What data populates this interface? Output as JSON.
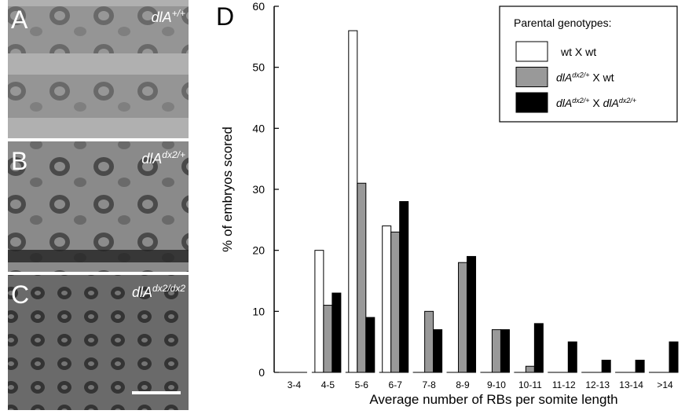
{
  "panels": [
    {
      "letter": "A",
      "genotype": [
        {
          "text": "dlA",
          "italic": true
        },
        {
          "text": "+/+",
          "italic": true,
          "sup": true
        }
      ]
    },
    {
      "letter": "B",
      "genotype": [
        {
          "text": "dlA",
          "italic": true
        },
        {
          "text": "dx2/+",
          "italic": true,
          "sup": true
        }
      ]
    },
    {
      "letter": "C",
      "genotype": [
        {
          "text": "dlA",
          "italic": true
        },
        {
          "text": "dx2/dx2",
          "italic": true,
          "sup": true
        }
      ]
    }
  ],
  "chart_data": {
    "type": "bar",
    "letter": "D",
    "x_label": "Average number of RBs per somite length",
    "y_label": "% of embryos scored",
    "legend_title": "Parental genotypes:",
    "categories": [
      "3-4",
      "4-5",
      "5-6",
      "6-7",
      "7-8",
      "8-9",
      "9-10",
      "10-11",
      "11-12",
      "12-13",
      "13-14",
      ">14"
    ],
    "series": [
      {
        "name": [
          {
            "text": "wt X wt"
          }
        ],
        "color": "#ffffff",
        "values": [
          0,
          20,
          56,
          24,
          0,
          0,
          0,
          0,
          0,
          0,
          0,
          0
        ]
      },
      {
        "name": [
          {
            "text": "dlA",
            "italic": true
          },
          {
            "text": "dx2/+",
            "italic": true,
            "sup": true
          },
          {
            "text": " X wt"
          }
        ],
        "color": "#999999",
        "values": [
          0,
          11,
          31,
          23,
          10,
          18,
          7,
          1,
          0,
          0,
          0,
          0
        ]
      },
      {
        "name": [
          {
            "text": "dlA",
            "italic": true
          },
          {
            "text": "dx2/+",
            "italic": true,
            "sup": true
          },
          {
            "text": " X "
          },
          {
            "text": "dlA",
            "italic": true
          },
          {
            "text": "dx2/+",
            "italic": true,
            "sup": true
          }
        ],
        "color": "#000000",
        "values": [
          0,
          13,
          9,
          28,
          7,
          19,
          7,
          8,
          5,
          2,
          2,
          5
        ]
      }
    ],
    "ylim": [
      0,
      60
    ],
    "yticks": [
      0,
      10,
      20,
      30,
      40,
      50,
      60
    ]
  }
}
